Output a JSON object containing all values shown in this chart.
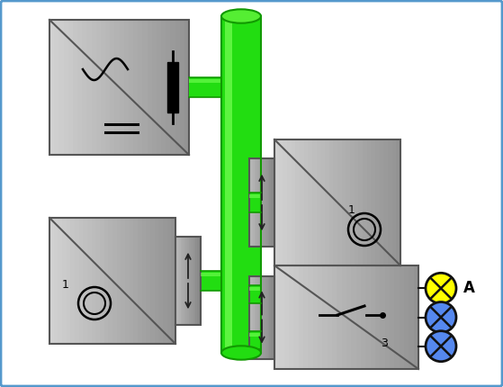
{
  "bg_color": "#ffffff",
  "border_color": "#5599cc",
  "green_bus_color": "#22dd11",
  "green_highlight": "#77ff55",
  "green_dark": "#119900",
  "box_fill": "#bbbbbb",
  "box_border": "#555555",
  "connector_fill": "#999999",
  "wire_color": "#111111",
  "yellow_lamp": "#ffff00",
  "blue_lamp": "#5588ee",
  "lamp_border": "#111111",
  "title_A": "A",
  "label_1a": "1",
  "label_1b": "1",
  "label_3": "3",
  "figsize": [
    5.59,
    4.3
  ],
  "dpi": 100
}
